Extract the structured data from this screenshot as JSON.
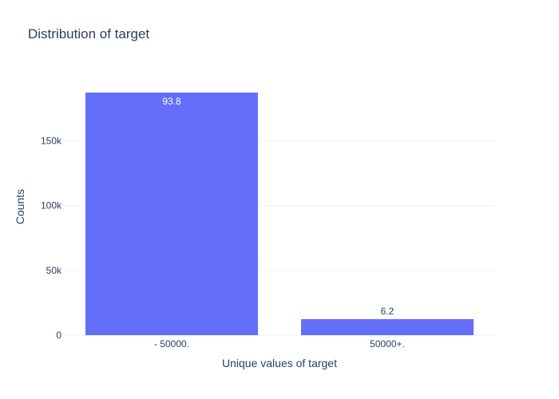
{
  "chart_data": {
    "type": "bar",
    "title": "Distribution of target",
    "xlabel": "Unique values of target",
    "ylabel": "Counts",
    "categories": [
      "- 50000.",
      "50000+."
    ],
    "values": [
      187141,
      12382
    ],
    "data_labels": [
      "93.8",
      "6.2"
    ],
    "ylim": [
      0,
      197000
    ],
    "yticks": [
      0,
      50000,
      100000,
      150000
    ],
    "ytick_labels": [
      "0",
      "50k",
      "100k",
      "150k"
    ],
    "grid": true,
    "bar_color": "#636efa",
    "grid_color": "#ebf0f8",
    "text_color": "#2a3f5f"
  }
}
